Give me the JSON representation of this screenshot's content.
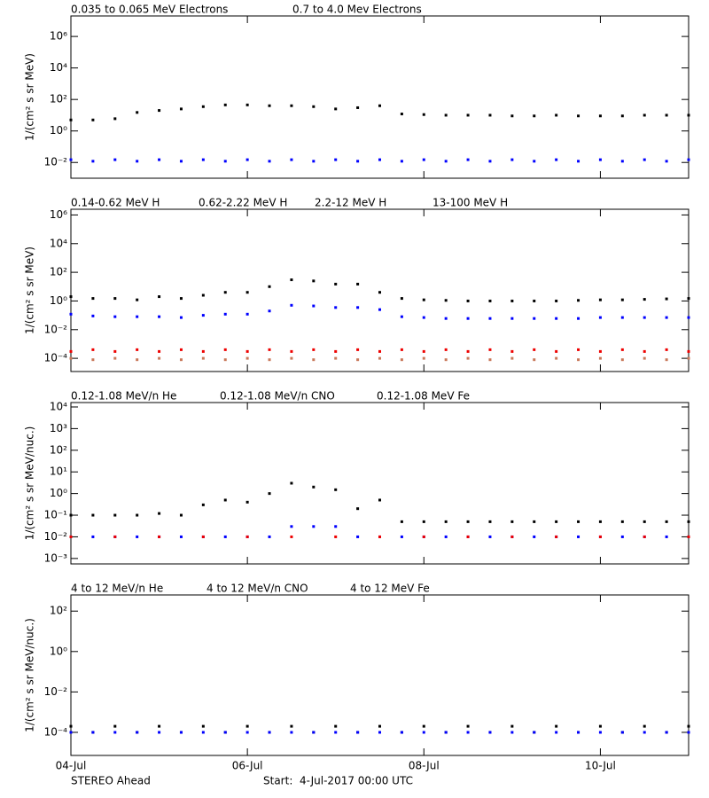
{
  "chart_data": [
    {
      "type": "scatter",
      "log_y": true,
      "ylabel": "1/(cm² s sr MeV)",
      "x": [
        "2017-07-04T00:00",
        "2017-07-04T06:00",
        "2017-07-04T12:00",
        "2017-07-04T18:00",
        "2017-07-05T00:00",
        "2017-07-05T06:00",
        "2017-07-05T12:00",
        "2017-07-05T18:00",
        "2017-07-06T00:00",
        "2017-07-06T06:00",
        "2017-07-06T12:00",
        "2017-07-06T18:00",
        "2017-07-07T00:00",
        "2017-07-07T06:00",
        "2017-07-07T12:00",
        "2017-07-07T18:00",
        "2017-07-08T00:00",
        "2017-07-08T06:00",
        "2017-07-08T12:00",
        "2017-07-08T18:00",
        "2017-07-09T00:00",
        "2017-07-09T06:00",
        "2017-07-09T12:00",
        "2017-07-09T18:00",
        "2017-07-10T00:00",
        "2017-07-10T06:00",
        "2017-07-10T12:00",
        "2017-07-10T18:00",
        "2017-07-11T00:00"
      ],
      "xlim": [
        "2017-07-04T00:00",
        "2017-07-11T00:00"
      ],
      "ylim": [
        0.001,
        20000000
      ],
      "yticks": [
        {
          "value": 0.01,
          "label": "10⁻²"
        },
        {
          "value": 1,
          "label": "10⁰"
        },
        {
          "value": 100,
          "label": "10²"
        },
        {
          "value": 10000,
          "label": "10⁴"
        },
        {
          "value": 1000000,
          "label": "10⁶"
        }
      ],
      "series": [
        {
          "name": "0.035 to 0.065 MeV Electrons",
          "color": "#000000",
          "values": [
            5,
            5,
            6,
            15,
            20,
            25,
            35,
            45,
            45,
            40,
            40,
            35,
            25,
            30,
            40,
            12,
            11,
            10,
            10,
            10,
            9,
            9,
            10,
            9,
            9,
            9,
            10,
            10,
            10
          ]
        },
        {
          "name": "0.7 to 4.0 Mev Electrons",
          "color": "#0000ff",
          "values": [
            0.015,
            0.012,
            0.015,
            0.012,
            0.015,
            0.012,
            0.015,
            0.012,
            0.015,
            0.012,
            0.015,
            0.012,
            0.015,
            0.012,
            0.015,
            0.012,
            0.015,
            0.012,
            0.015,
            0.012,
            0.015,
            0.012,
            0.015,
            0.012,
            0.015,
            0.012,
            0.015,
            0.012,
            0.015
          ]
        }
      ]
    },
    {
      "type": "scatter",
      "log_y": true,
      "ylabel": "1/(cm² s sr MeV)",
      "x": [
        "2017-07-04T00:00",
        "2017-07-04T06:00",
        "2017-07-04T12:00",
        "2017-07-04T18:00",
        "2017-07-05T00:00",
        "2017-07-05T06:00",
        "2017-07-05T12:00",
        "2017-07-05T18:00",
        "2017-07-06T00:00",
        "2017-07-06T06:00",
        "2017-07-06T12:00",
        "2017-07-06T18:00",
        "2017-07-07T00:00",
        "2017-07-07T06:00",
        "2017-07-07T12:00",
        "2017-07-07T18:00",
        "2017-07-08T00:00",
        "2017-07-08T06:00",
        "2017-07-08T12:00",
        "2017-07-08T18:00",
        "2017-07-09T00:00",
        "2017-07-09T06:00",
        "2017-07-09T12:00",
        "2017-07-09T18:00",
        "2017-07-10T00:00",
        "2017-07-10T06:00",
        "2017-07-10T12:00",
        "2017-07-10T18:00",
        "2017-07-11T00:00"
      ],
      "xlim": [
        "2017-07-04T00:00",
        "2017-07-11T00:00"
      ],
      "ylim": [
        1.2e-05,
        2500000
      ],
      "yticks": [
        {
          "value": 0.0001,
          "label": "10⁻⁴"
        },
        {
          "value": 0.01,
          "label": "10⁻²"
        },
        {
          "value": 1,
          "label": "10⁰"
        },
        {
          "value": 100,
          "label": "10²"
        },
        {
          "value": 10000,
          "label": "10⁴"
        },
        {
          "value": 1000000,
          "label": "10⁶"
        }
      ],
      "series": [
        {
          "name": "0.14-0.62 MeV H",
          "color": "#000000",
          "values": [
            2,
            1.5,
            1.5,
            1.2,
            2,
            1.5,
            2.5,
            4,
            4,
            10,
            30,
            25,
            15,
            15,
            4,
            1.5,
            1.2,
            1.1,
            1,
            1,
            1,
            1,
            1,
            1.1,
            1.2,
            1.2,
            1.3,
            1.4,
            1.5
          ]
        },
        {
          "name": "0.62-2.22 MeV H",
          "color": "#0000ff",
          "values": [
            0.12,
            0.09,
            0.08,
            0.08,
            0.08,
            0.07,
            0.1,
            0.12,
            0.12,
            0.2,
            0.5,
            0.45,
            0.35,
            0.35,
            0.25,
            0.08,
            0.07,
            0.06,
            0.06,
            0.06,
            0.06,
            0.06,
            0.06,
            0.06,
            0.07,
            0.07,
            0.07,
            0.07,
            0.07
          ]
        },
        {
          "name": "2.2-12 MeV H",
          "color": "#c8785a",
          "values": [
            0.0001,
            8e-05,
            0.0001,
            8e-05,
            0.0001,
            8e-05,
            0.0001,
            8e-05,
            0.0001,
            8e-05,
            0.0001,
            8e-05,
            0.0001,
            8e-05,
            0.0001,
            8e-05,
            0.0001,
            8e-05,
            0.0001,
            8e-05,
            0.0001,
            8e-05,
            0.0001,
            8e-05,
            0.0001,
            8e-05,
            0.0001,
            8e-05,
            0.0001
          ]
        },
        {
          "name": "13-100 MeV H",
          "color": "#ee0000",
          "values": [
            0.0003,
            0.0004,
            0.0003,
            0.0004,
            0.0003,
            0.0004,
            0.0003,
            0.0004,
            0.0003,
            0.0004,
            0.0003,
            0.0004,
            0.0003,
            0.0004,
            0.0003,
            0.0004,
            0.0003,
            0.0004,
            0.0003,
            0.0004,
            0.0003,
            0.0004,
            0.0003,
            0.0004,
            0.0003,
            0.0004,
            0.0003,
            0.0004,
            0.0003
          ]
        }
      ]
    },
    {
      "type": "scatter",
      "log_y": true,
      "ylabel": "1/(cm² s sr MeV/nuc.)",
      "x": [
        "2017-07-04T00:00",
        "2017-07-04T06:00",
        "2017-07-04T12:00",
        "2017-07-04T18:00",
        "2017-07-05T00:00",
        "2017-07-05T06:00",
        "2017-07-05T12:00",
        "2017-07-05T18:00",
        "2017-07-06T00:00",
        "2017-07-06T06:00",
        "2017-07-06T12:00",
        "2017-07-06T18:00",
        "2017-07-07T00:00",
        "2017-07-07T06:00",
        "2017-07-07T12:00",
        "2017-07-07T18:00",
        "2017-07-08T00:00",
        "2017-07-08T06:00",
        "2017-07-08T12:00",
        "2017-07-08T18:00",
        "2017-07-09T00:00",
        "2017-07-09T06:00",
        "2017-07-09T12:00",
        "2017-07-09T18:00",
        "2017-07-10T00:00",
        "2017-07-10T06:00",
        "2017-07-10T12:00",
        "2017-07-10T18:00",
        "2017-07-11T00:00"
      ],
      "xlim": [
        "2017-07-04T00:00",
        "2017-07-11T00:00"
      ],
      "ylim": [
        0.00056,
        16000
      ],
      "yticks": [
        {
          "value": 0.001,
          "label": "10⁻³"
        },
        {
          "value": 0.01,
          "label": "10⁻²"
        },
        {
          "value": 0.1,
          "label": "10⁻¹"
        },
        {
          "value": 1,
          "label": "10⁰"
        },
        {
          "value": 10,
          "label": "10¹"
        },
        {
          "value": 100,
          "label": "10²"
        },
        {
          "value": 1000,
          "label": "10³"
        },
        {
          "value": 10000,
          "label": "10⁴"
        }
      ],
      "series": [
        {
          "name": "0.12-1.08 MeV/n He",
          "color": "#000000",
          "values": [
            0.1,
            0.1,
            0.1,
            0.1,
            0.12,
            0.1,
            0.3,
            0.5,
            0.4,
            1,
            3,
            2,
            1.5,
            0.2,
            0.5,
            0.05,
            0.05,
            0.05,
            0.05,
            0.05,
            0.05,
            0.05,
            0.05,
            0.05,
            0.05,
            0.05,
            0.05,
            0.05,
            0.05
          ]
        },
        {
          "name": "0.12-1.08 MeV/n CNO",
          "color": "#0000ff",
          "values": [
            0.01,
            0.01,
            0.01,
            0.01,
            0.01,
            0.01,
            0.01,
            0.01,
            0.01,
            0.01,
            0.03,
            0.03,
            0.03,
            0.01,
            0.01,
            0.01,
            0.01,
            0.01,
            0.01,
            0.01,
            0.01,
            0.01,
            0.01,
            0.01,
            0.01,
            0.01,
            0.01,
            0.01,
            0.01
          ]
        },
        {
          "name": "0.12-1.08 MeV Fe",
          "color": "#ee0000",
          "values": [
            0.01,
            null,
            0.01,
            null,
            0.01,
            null,
            0.01,
            null,
            0.01,
            null,
            0.01,
            null,
            0.01,
            null,
            0.01,
            null,
            0.01,
            null,
            0.01,
            null,
            0.01,
            null,
            0.01,
            null,
            0.01,
            null,
            0.01,
            null,
            0.01
          ]
        }
      ]
    },
    {
      "type": "scatter",
      "log_y": true,
      "ylabel": "1/(cm² s sr MeV/nuc.)",
      "x": [
        "2017-07-04T00:00",
        "2017-07-04T06:00",
        "2017-07-04T12:00",
        "2017-07-04T18:00",
        "2017-07-05T00:00",
        "2017-07-05T06:00",
        "2017-07-05T12:00",
        "2017-07-05T18:00",
        "2017-07-06T00:00",
        "2017-07-06T06:00",
        "2017-07-06T12:00",
        "2017-07-06T18:00",
        "2017-07-07T00:00",
        "2017-07-07T06:00",
        "2017-07-07T12:00",
        "2017-07-07T18:00",
        "2017-07-08T00:00",
        "2017-07-08T06:00",
        "2017-07-08T12:00",
        "2017-07-08T18:00",
        "2017-07-09T00:00",
        "2017-07-09T06:00",
        "2017-07-09T12:00",
        "2017-07-09T18:00",
        "2017-07-10T00:00",
        "2017-07-10T06:00",
        "2017-07-10T12:00",
        "2017-07-10T18:00",
        "2017-07-11T00:00"
      ],
      "xlim": [
        "2017-07-04T00:00",
        "2017-07-11T00:00"
      ],
      "xticks": [
        {
          "value": "2017-07-04T00:00",
          "label": "04-Jul"
        },
        {
          "value": "2017-07-06T00:00",
          "label": "06-Jul"
        },
        {
          "value": "2017-07-08T00:00",
          "label": "08-Jul"
        },
        {
          "value": "2017-07-10T00:00",
          "label": "10-Jul"
        }
      ],
      "ylim": [
        7.2e-06,
        630
      ],
      "yticks": [
        {
          "value": 0.0001,
          "label": "10⁻⁴"
        },
        {
          "value": 0.01,
          "label": "10⁻²"
        },
        {
          "value": 1,
          "label": "10⁰"
        },
        {
          "value": 100,
          "label": "10²"
        }
      ],
      "series": [
        {
          "name": "4 to 12 MeV/n He",
          "color": "#000000",
          "values": [
            0.0002,
            0.0001,
            0.0002,
            0.0001,
            0.0002,
            0.0001,
            0.0002,
            0.0001,
            0.0002,
            0.0001,
            0.0002,
            0.0001,
            0.0002,
            0.0001,
            0.0002,
            0.0001,
            0.0002,
            0.0001,
            0.0002,
            0.0001,
            0.0002,
            0.0001,
            0.0002,
            0.0001,
            0.0002,
            0.0001,
            0.0002,
            0.0001,
            0.0002
          ]
        },
        {
          "name": "4 to 12 MeV/n CNO",
          "color": "#0000ff",
          "values": [
            0.0001,
            0.0001,
            0.0001,
            0.0001,
            0.0001,
            0.0001,
            0.0001,
            0.0001,
            0.0001,
            0.0001,
            0.0001,
            0.0001,
            0.0001,
            0.0001,
            0.0001,
            0.0001,
            0.0001,
            0.0001,
            0.0001,
            0.0001,
            0.0001,
            0.0001,
            0.0001,
            0.0001,
            0.0001,
            0.0001,
            0.0001,
            0.0001,
            0.0001
          ]
        },
        {
          "name": "4 to 12 MeV Fe",
          "color": "#ee0000",
          "values": [
            null,
            null,
            null,
            null,
            null,
            null,
            null,
            null,
            null,
            null,
            null,
            null,
            null,
            null,
            null,
            null,
            null,
            null,
            null,
            null,
            null,
            null,
            null,
            null,
            null,
            null,
            null,
            null,
            null
          ]
        }
      ]
    }
  ],
  "footer": {
    "left": "STEREO Ahead",
    "right": "Start:  4-Jul-2017 00:00 UTC"
  }
}
